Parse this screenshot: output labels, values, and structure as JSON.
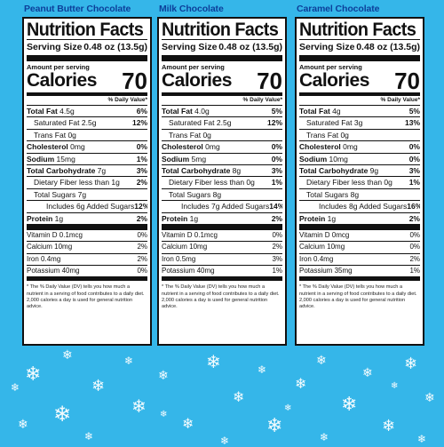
{
  "products": [
    {
      "title": "Peanut Butter Chocolate",
      "label": {
        "heading": "Nutrition Facts",
        "serving_size_label": "Serving Size",
        "serving_size_value": "0.48 oz (13.5g)",
        "amount_per_serving": "Amount per serving",
        "calories_label": "Calories",
        "calories_value": "70",
        "dv_header": "% Daily Value*",
        "nutrients": [
          {
            "name": "Total Fat",
            "amount": "4.5g",
            "dv": "6%",
            "bold": true,
            "indent": 0
          },
          {
            "name": "Saturated Fat",
            "amount": "2.5g",
            "dv": "12%",
            "bold": false,
            "indent": 1
          },
          {
            "name": "Trans Fat",
            "amount": "0g",
            "dv": "",
            "bold": false,
            "indent": 1
          },
          {
            "name": "Cholesterol",
            "amount": "0mg",
            "dv": "0%",
            "bold": true,
            "indent": 0
          },
          {
            "name": "Sodium",
            "amount": "15mg",
            "dv": "1%",
            "bold": true,
            "indent": 0
          },
          {
            "name": "Total Carbohydrate",
            "amount": "7g",
            "dv": "3%",
            "bold": true,
            "indent": 0
          },
          {
            "name": "Dietary Fiber",
            "amount": "less than 1g",
            "dv": "2%",
            "bold": false,
            "indent": 1
          },
          {
            "name": "Total Sugars",
            "amount": "7g",
            "dv": "",
            "bold": false,
            "indent": 1
          },
          {
            "name": "Includes 6g Added Sugars",
            "amount": "",
            "dv": "12%",
            "bold": false,
            "indent": 3
          },
          {
            "name": "Protein",
            "amount": "1g",
            "dv": "2%",
            "bold": true,
            "indent": 0
          }
        ],
        "vitamins": [
          {
            "name": "Vitamin D",
            "amount": "0.1mcg",
            "dv": "0%"
          },
          {
            "name": "Calcium",
            "amount": "10mg",
            "dv": "2%"
          },
          {
            "name": "Iron",
            "amount": "0.4mg",
            "dv": "2%"
          },
          {
            "name": "Potassium",
            "amount": "40mg",
            "dv": "0%"
          }
        ],
        "footnote": "* The % Daily Value (DV) tells you how much a nutrient in a serving of food contributes to a daily diet. 2,000 calories a day is used for general nutrition advice."
      }
    },
    {
      "title": "Milk Chocolate",
      "label": {
        "heading": "Nutrition Facts",
        "serving_size_label": "Serving Size",
        "serving_size_value": "0.48 oz (13.5g)",
        "amount_per_serving": "Amount per serving",
        "calories_label": "Calories",
        "calories_value": "70",
        "dv_header": "% Daily Value*",
        "nutrients": [
          {
            "name": "Total Fat",
            "amount": "4.0g",
            "dv": "5%",
            "bold": true,
            "indent": 0
          },
          {
            "name": "Saturated Fat",
            "amount": "2.5g",
            "dv": "12%",
            "bold": false,
            "indent": 1
          },
          {
            "name": "Trans Fat",
            "amount": "0g",
            "dv": "",
            "bold": false,
            "indent": 1
          },
          {
            "name": "Cholesterol",
            "amount": "0mg",
            "dv": "0%",
            "bold": true,
            "indent": 0
          },
          {
            "name": "Sodium",
            "amount": "5mg",
            "dv": "0%",
            "bold": true,
            "indent": 0
          },
          {
            "name": "Total Carbohydrate",
            "amount": "8g",
            "dv": "3%",
            "bold": true,
            "indent": 0
          },
          {
            "name": "Dietary Fiber",
            "amount": "less than 0g",
            "dv": "1%",
            "bold": false,
            "indent": 1
          },
          {
            "name": "Total Sugars",
            "amount": "8g",
            "dv": "",
            "bold": false,
            "indent": 1
          },
          {
            "name": "Includes 7g Added Sugars",
            "amount": "",
            "dv": "14%",
            "bold": false,
            "indent": 3
          },
          {
            "name": "Protein",
            "amount": "1g",
            "dv": "2%",
            "bold": true,
            "indent": 0
          }
        ],
        "vitamins": [
          {
            "name": "Vitamin D",
            "amount": "0.1mcg",
            "dv": "0%"
          },
          {
            "name": "Calcium",
            "amount": "10mg",
            "dv": "2%"
          },
          {
            "name": "Iron",
            "amount": "0.5mg",
            "dv": "3%"
          },
          {
            "name": "Potassium",
            "amount": "40mg",
            "dv": "1%"
          }
        ],
        "footnote": "* The % Daily Value (DV) tells you how much a nutrient in a serving of food contributes to a daily diet. 2,000 calories a day is used for general nutrition advice."
      }
    },
    {
      "title": "Caramel Chocolate",
      "label": {
        "heading": "Nutrition Facts",
        "serving_size_label": "Serving Size",
        "serving_size_value": "0.48 oz (13.5g)",
        "amount_per_serving": "Amount per serving",
        "calories_label": "Calories",
        "calories_value": "70",
        "dv_header": "% Daily Value*",
        "nutrients": [
          {
            "name": "Total Fat",
            "amount": "4g",
            "dv": "5%",
            "bold": true,
            "indent": 0
          },
          {
            "name": "Saturated Fat",
            "amount": "3g",
            "dv": "13%",
            "bold": false,
            "indent": 1
          },
          {
            "name": "Trans Fat",
            "amount": "0g",
            "dv": "",
            "bold": false,
            "indent": 1
          },
          {
            "name": "Cholesterol",
            "amount": "0mg",
            "dv": "0%",
            "bold": true,
            "indent": 0
          },
          {
            "name": "Sodium",
            "amount": "10mg",
            "dv": "0%",
            "bold": true,
            "indent": 0
          },
          {
            "name": "Total Carbohydrate",
            "amount": "9g",
            "dv": "3%",
            "bold": true,
            "indent": 0
          },
          {
            "name": "Dietary Fiber",
            "amount": "less than 0g",
            "dv": "1%",
            "bold": false,
            "indent": 1
          },
          {
            "name": "Total Sugars",
            "amount": "8g",
            "dv": "",
            "bold": false,
            "indent": 1
          },
          {
            "name": "Includes 8g Added Sugars",
            "amount": "",
            "dv": "16%",
            "bold": false,
            "indent": 3
          },
          {
            "name": "Protein",
            "amount": "1g",
            "dv": "2%",
            "bold": true,
            "indent": 0
          }
        ],
        "vitamins": [
          {
            "name": "Vitamin D",
            "amount": "0mcg",
            "dv": "0%"
          },
          {
            "name": "Calcium",
            "amount": "10mg",
            "dv": "0%"
          },
          {
            "name": "Iron",
            "amount": "0.4mg",
            "dv": "2%"
          },
          {
            "name": "Potassium",
            "amount": "35mg",
            "dv": "1%"
          }
        ],
        "footnote": "* The % Daily Value (DV) tells you how much a nutrient in a serving of food contributes to a daily diet. 2,000 calories a day is used for general nutrition advice."
      }
    }
  ],
  "decor": {
    "background_color": "#35b6e9",
    "title_color": "#0c3f9a",
    "snowflake_icon": "snowflake-icon"
  }
}
